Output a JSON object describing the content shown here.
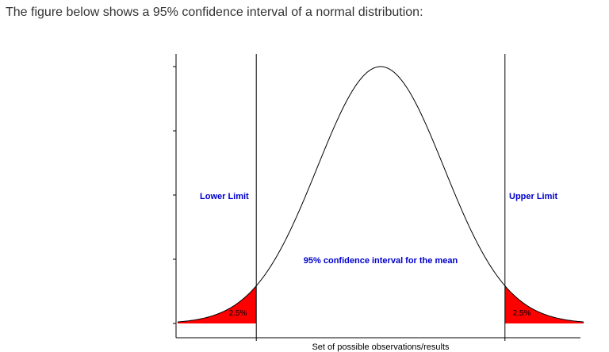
{
  "intro_text": "The figure below shows a 95% confidence interval of a normal distribution:",
  "chart_data": {
    "type": "area",
    "distribution": "normal",
    "mean": 0,
    "sd": 1,
    "x_range": [
      -3.2,
      3.2
    ],
    "lower_limit_z": -1.96,
    "upper_limit_z": 1.96,
    "xlabel": "Set of possible observations/results",
    "ylabel": "",
    "x_ticks_shown": false,
    "y_ticks_shown": true,
    "y_tick_count": 5,
    "tail_fill_color": "#ff0000",
    "curve_color": "#000000",
    "label_color": "#0000cc",
    "annotations": {
      "lower_limit": "Lower Limit",
      "upper_limit": "Upper Limit",
      "interval": "95% confidence interval for the mean",
      "left_tail": "2.5%",
      "right_tail": "2.5%"
    }
  }
}
